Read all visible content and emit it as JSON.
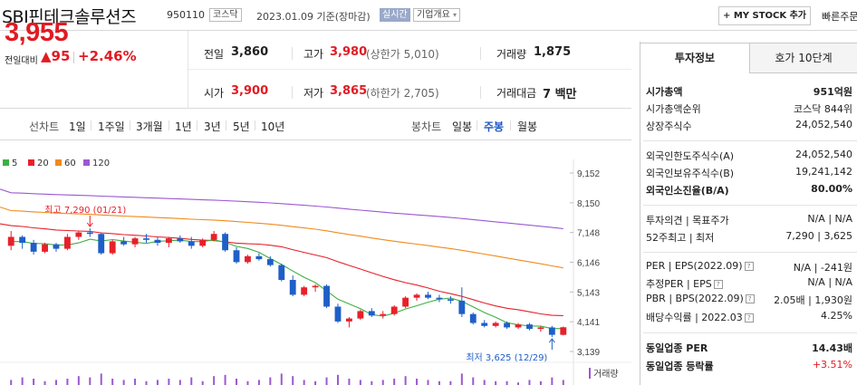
{
  "header": {
    "name": "SBI핀테크솔루션즈",
    "code": "950110",
    "market_tag": "코스닥",
    "date": "2023.01.09 기준(장마감)",
    "realtime": "실시간",
    "overview": "기업개요",
    "overview_arrow": "▾",
    "mystock": "MY STOCK 추가",
    "mystock_plus": "+",
    "quick": "빠른주문"
  },
  "price": {
    "current": "3,955",
    "change_label": "전일대비",
    "change_amount": "▲95",
    "change_pct": "+2.46%"
  },
  "quotes": {
    "prev_label": "전일",
    "prev": "3,860",
    "high_label": "고가",
    "high": "3,980",
    "high_detail": "(상한가 5,010)",
    "volume_label": "거래량",
    "volume": "1,875",
    "open_label": "시가",
    "open": "3,900",
    "low_label": "저가",
    "low": "3,865",
    "low_detail": "(하한가 2,705)",
    "value_label": "거래대금",
    "value": "7 백만"
  },
  "toolbar": {
    "line_label": "선차트",
    "line_ranges": [
      "1일",
      "1주일",
      "3개월",
      "1년",
      "3년",
      "5년",
      "10년"
    ],
    "candle_label": "봉차트",
    "candle_ranges": [
      "일봉",
      "주봉",
      "월봉"
    ],
    "selected": "주봉"
  },
  "chart_data": {
    "type": "candlestick",
    "legend": [
      {
        "name": "5",
        "color": "#3cb043"
      },
      {
        "name": "20",
        "color": "#e8202a"
      },
      {
        "name": "60",
        "color": "#f08a1c"
      },
      {
        "name": "120",
        "color": "#9b59d0"
      }
    ],
    "y_ticks": [
      "9,152",
      "8,150",
      "7,148",
      "6,146",
      "5,143",
      "4,141",
      "3,139"
    ],
    "ylim": [
      3139,
      9152
    ],
    "max_label": "최고 7,290 (01/21)",
    "min_label": "최저 3,625 (12/29)",
    "volume_label": "거래량",
    "up_color": "#e8202a",
    "down_color": "#1f5fc8",
    "candles": [
      [
        6700,
        7200,
        6550,
        7000
      ],
      [
        7000,
        7050,
        6600,
        6800
      ],
      [
        6800,
        6900,
        6400,
        6500
      ],
      [
        6500,
        6800,
        6450,
        6750
      ],
      [
        6750,
        6800,
        6500,
        6600
      ],
      [
        6600,
        7100,
        6550,
        7000
      ],
      [
        7000,
        7200,
        6900,
        7150
      ],
      [
        7150,
        7290,
        7000,
        7100
      ],
      [
        7100,
        7150,
        6400,
        6450
      ],
      [
        6450,
        6900,
        6400,
        6850
      ],
      [
        6850,
        7000,
        6700,
        6750
      ],
      [
        6750,
        7000,
        6650,
        6950
      ],
      [
        6950,
        7100,
        6800,
        6900
      ],
      [
        6900,
        7000,
        6700,
        6800
      ],
      [
        6800,
        7000,
        6650,
        6950
      ],
      [
        6950,
        7050,
        6800,
        6850
      ],
      [
        6850,
        7000,
        6600,
        6700
      ],
      [
        6700,
        6950,
        6650,
        6900
      ],
      [
        6900,
        7200,
        6850,
        7100
      ],
      [
        7100,
        7150,
        6500,
        6550
      ],
      [
        6550,
        6650,
        6100,
        6150
      ],
      [
        6150,
        6400,
        6100,
        6350
      ],
      [
        6350,
        6450,
        6200,
        6250
      ],
      [
        6250,
        6350,
        6000,
        6050
      ],
      [
        6050,
        6100,
        5500,
        5550
      ],
      [
        5550,
        5700,
        5000,
        5050
      ],
      [
        5050,
        5350,
        5000,
        5300
      ],
      [
        5300,
        5400,
        5150,
        5350
      ],
      [
        5350,
        5400,
        4600,
        4650
      ],
      [
        4650,
        4750,
        4100,
        4150
      ],
      [
        4150,
        4300,
        3950,
        4250
      ],
      [
        4250,
        4550,
        4200,
        4500
      ],
      [
        4500,
        4600,
        4300,
        4350
      ],
      [
        4350,
        4500,
        4250,
        4400
      ],
      [
        4400,
        4700,
        4350,
        4650
      ],
      [
        4650,
        5000,
        4600,
        4950
      ],
      [
        4950,
        5100,
        4850,
        5050
      ],
      [
        5050,
        5150,
        4900,
        4950
      ],
      [
        4950,
        5050,
        4800,
        4900
      ],
      [
        4900,
        5000,
        4750,
        4850
      ],
      [
        4850,
        5300,
        4300,
        4400
      ],
      [
        4400,
        4450,
        4050,
        4100
      ],
      [
        4100,
        4200,
        3950,
        4000
      ],
      [
        4000,
        4150,
        3950,
        4100
      ],
      [
        4100,
        4150,
        3900,
        3950
      ],
      [
        3950,
        4100,
        3900,
        4050
      ],
      [
        4050,
        4100,
        3850,
        3900
      ],
      [
        3900,
        4000,
        3800,
        3950
      ],
      [
        3950,
        4000,
        3625,
        3700
      ],
      [
        3700,
        3980,
        3680,
        3955
      ]
    ],
    "volumes": [
      0.4,
      0.6,
      0.5,
      0.3,
      0.4,
      0.5,
      0.7,
      0.6,
      0.9,
      0.5,
      0.4,
      0.5,
      0.3,
      0.4,
      0.5,
      0.4,
      0.6,
      0.3,
      0.7,
      0.8,
      0.5,
      0.3,
      0.4,
      0.6,
      0.9,
      0.7,
      0.4,
      0.3,
      0.6,
      0.8,
      0.5,
      0.4,
      0.3,
      0.4,
      0.5,
      0.7,
      0.5,
      0.4,
      0.3,
      0.3,
      0.9,
      0.6,
      0.4,
      0.3,
      0.3,
      0.2,
      0.4,
      0.3,
      0.6,
      0.4
    ]
  },
  "panel": {
    "tab_invest": "투자정보",
    "tab_quote": "호가 10단계",
    "rows": [
      {
        "label": "시가총액",
        "value": "951억원",
        "bold": true
      },
      {
        "label": "시가총액순위",
        "value": "코스닥 844위"
      },
      {
        "label": "상장주식수",
        "value": "24,052,540"
      },
      {
        "label": "외국인한도주식수(A)",
        "value": "24,052,540"
      },
      {
        "label": "외국인보유주식수(B)",
        "value": "19,241,142"
      },
      {
        "label": "외국인소진율(B/A)",
        "value": "80.00%",
        "bold": true
      },
      {
        "label": "투자의견 | 목표주가",
        "value": "N/A | N/A"
      },
      {
        "label": "52주최고 | 최저",
        "value": "7,290 | 3,625"
      },
      {
        "label": "PER | EPS(2022.09)",
        "value": "N/A | -241원"
      },
      {
        "label": "추정PER | EPS",
        "value": "N/A | N/A"
      },
      {
        "label": "PBR | BPS(2022.09)",
        "value": "2.05배 | 1,930원"
      },
      {
        "label": "배당수익률 | 2022.03",
        "value": "4.25%"
      },
      {
        "label": "동일업종 PER",
        "value": "14.43배",
        "bold": true
      },
      {
        "label": "동일업종 등락률",
        "value": "+3.51%",
        "red": true
      }
    ]
  }
}
